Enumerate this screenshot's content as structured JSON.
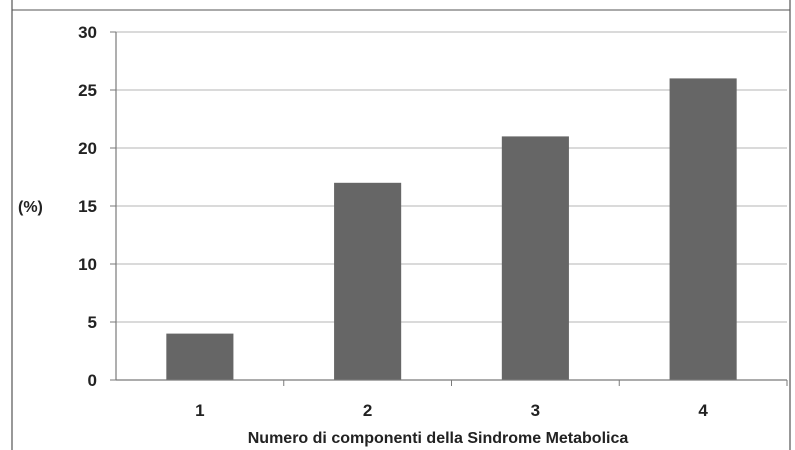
{
  "chart_data": {
    "type": "bar",
    "categories": [
      "1",
      "2",
      "3",
      "4"
    ],
    "values": [
      4,
      17,
      21,
      26
    ],
    "title": "",
    "xlabel": "Numero di componenti della Sindrome Metabolica",
    "ylabel": "(%)",
    "ylim": [
      0,
      30
    ],
    "yticks": [
      "0",
      "5",
      "10",
      "15",
      "20",
      "25",
      "30"
    ],
    "grid": true,
    "legend": "none",
    "bar_color": "#666666",
    "grid_color": "#b5b5b5",
    "axis_color": "#7a7a7a"
  }
}
